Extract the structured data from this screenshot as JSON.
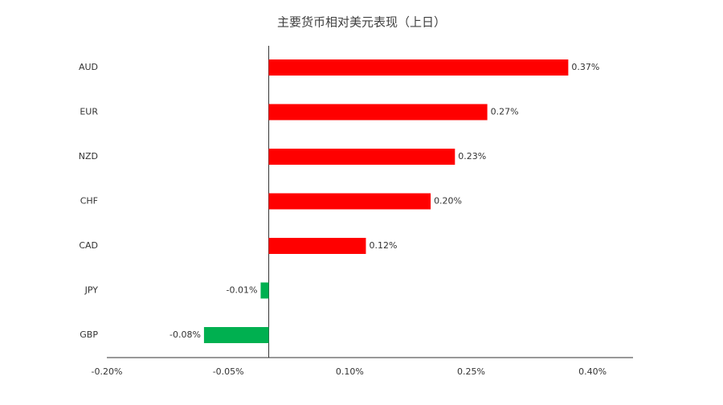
{
  "chart_data": {
    "type": "bar",
    "orientation": "horizontal",
    "title": "主要货币相对美元表现（上日）",
    "categories": [
      "AUD",
      "EUR",
      "NZD",
      "CHF",
      "CAD",
      "JPY",
      "GBP"
    ],
    "values": [
      0.37,
      0.27,
      0.23,
      0.2,
      0.12,
      -0.01,
      -0.08
    ],
    "value_labels": [
      "0.37%",
      "0.27%",
      "0.23%",
      "0.20%",
      "0.12%",
      "-0.01%",
      "-0.08%"
    ],
    "positive_color": "#ff0000",
    "negative_color": "#00b050",
    "xlim": [
      -0.2,
      0.45
    ],
    "xticks": [
      {
        "value": -0.2,
        "label": "-0.20%"
      },
      {
        "value": -0.05,
        "label": "-0.05%"
      },
      {
        "value": 0.1,
        "label": "0.10%"
      },
      {
        "value": 0.25,
        "label": "0.25%"
      },
      {
        "value": 0.4,
        "label": "0.40%"
      }
    ],
    "grid": false
  }
}
